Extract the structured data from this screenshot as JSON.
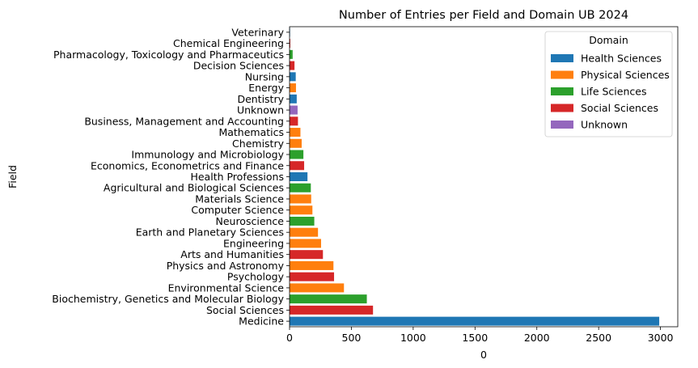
{
  "chart_data": {
    "type": "bar",
    "orientation": "horizontal",
    "title": "Number of Entries per Field and Domain UB 2024",
    "xlabel": "0",
    "ylabel": "Field",
    "xlim": [
      0,
      3140
    ],
    "xticks": [
      0,
      500,
      1000,
      1500,
      2000,
      2500,
      3000
    ],
    "grid": false,
    "legend": {
      "title": "Domain",
      "placement": "top-right",
      "entries": [
        {
          "name": "Health Sciences",
          "color": "#1f77b4"
        },
        {
          "name": "Physical Sciences",
          "color": "#ff7f0e"
        },
        {
          "name": "Life Sciences",
          "color": "#2ca02c"
        },
        {
          "name": "Social Sciences",
          "color": "#d62728"
        },
        {
          "name": "Unknown",
          "color": "#9467bd"
        }
      ]
    },
    "bars": [
      {
        "category": "Veterinary",
        "value": 1,
        "domain": "Health Sciences"
      },
      {
        "category": "Chemical Engineering",
        "value": 6,
        "domain": "Social Sciences"
      },
      {
        "category": "Pharmacology, Toxicology and Pharmaceutics",
        "value": 25,
        "domain": "Life Sciences"
      },
      {
        "category": "Decision Sciences",
        "value": 40,
        "domain": "Social Sciences"
      },
      {
        "category": "Nursing",
        "value": 50,
        "domain": "Health Sciences"
      },
      {
        "category": "Energy",
        "value": 52,
        "domain": "Physical Sciences"
      },
      {
        "category": "Dentistry",
        "value": 58,
        "domain": "Health Sciences"
      },
      {
        "category": "Unknown",
        "value": 65,
        "domain": "Unknown"
      },
      {
        "category": "Business, Management and Accounting",
        "value": 68,
        "domain": "Social Sciences"
      },
      {
        "category": "Mathematics",
        "value": 88,
        "domain": "Physical Sciences"
      },
      {
        "category": "Chemistry",
        "value": 98,
        "domain": "Physical Sciences"
      },
      {
        "category": "Immunology and Microbiology",
        "value": 112,
        "domain": "Life Sciences"
      },
      {
        "category": "Economics, Econometrics and Finance",
        "value": 118,
        "domain": "Social Sciences"
      },
      {
        "category": "Health Professions",
        "value": 145,
        "domain": "Health Sciences"
      },
      {
        "category": "Agricultural and Biological Sciences",
        "value": 172,
        "domain": "Life Sciences"
      },
      {
        "category": "Materials Science",
        "value": 175,
        "domain": "Physical Sciences"
      },
      {
        "category": "Computer Science",
        "value": 185,
        "domain": "Physical Sciences"
      },
      {
        "category": "Neuroscience",
        "value": 200,
        "domain": "Life Sciences"
      },
      {
        "category": "Earth and Planetary Sciences",
        "value": 230,
        "domain": "Physical Sciences"
      },
      {
        "category": "Engineering",
        "value": 255,
        "domain": "Physical Sciences"
      },
      {
        "category": "Arts and Humanities",
        "value": 270,
        "domain": "Social Sciences"
      },
      {
        "category": "Physics and Astronomy",
        "value": 355,
        "domain": "Physical Sciences"
      },
      {
        "category": "Psychology",
        "value": 360,
        "domain": "Social Sciences"
      },
      {
        "category": "Environmental Science",
        "value": 440,
        "domain": "Physical Sciences"
      },
      {
        "category": "Biochemistry, Genetics and Molecular Biology",
        "value": 625,
        "domain": "Life Sciences"
      },
      {
        "category": "Social Sciences",
        "value": 675,
        "domain": "Social Sciences"
      },
      {
        "category": "Medicine",
        "value": 2990,
        "domain": "Health Sciences"
      }
    ]
  }
}
